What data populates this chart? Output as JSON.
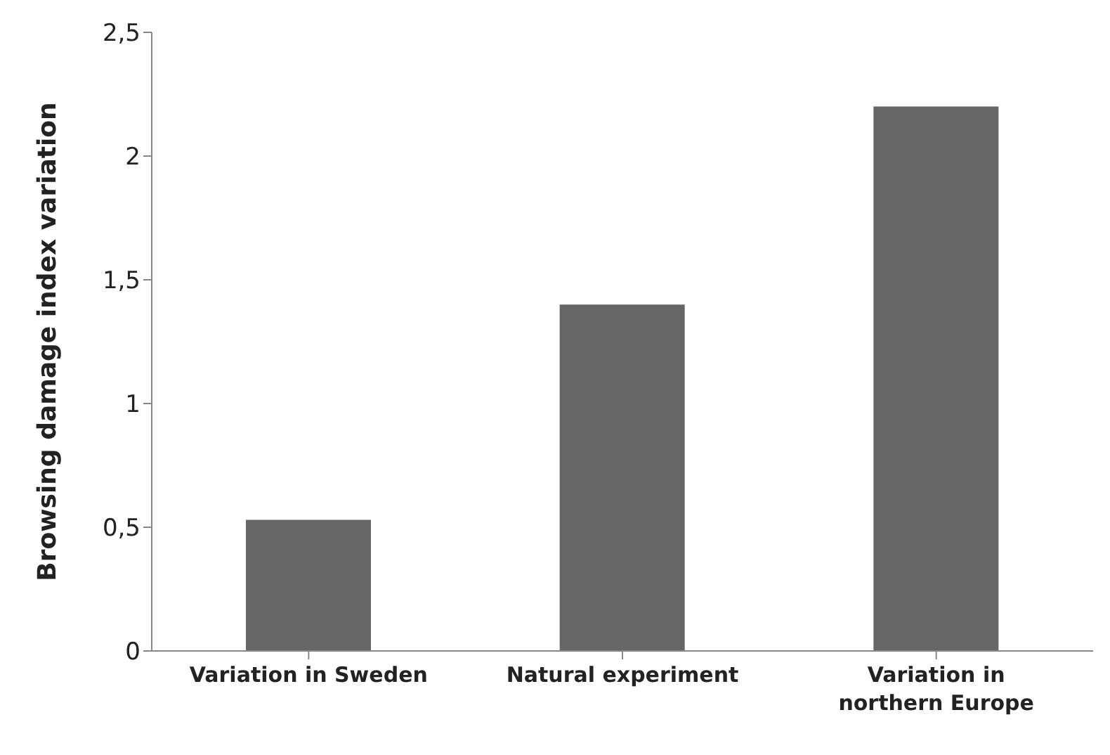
{
  "chart_data": {
    "type": "bar",
    "ylabel": "Browsing damage index variation",
    "categories": [
      "Variation in Sweden",
      "Natural experiment",
      "Variation in northern Europe"
    ],
    "values": [
      0.53,
      1.4,
      2.2
    ],
    "color": "#666666",
    "ylim": [
      0,
      2.5
    ],
    "yticks": [
      0,
      {
        "value": 0.5,
        "label": "0,5"
      },
      1,
      {
        "value": 1.5,
        "label": "1,5"
      },
      2,
      {
        "value": 2.5,
        "label": "2,5"
      }
    ],
    "grid": false,
    "legend": false
  }
}
